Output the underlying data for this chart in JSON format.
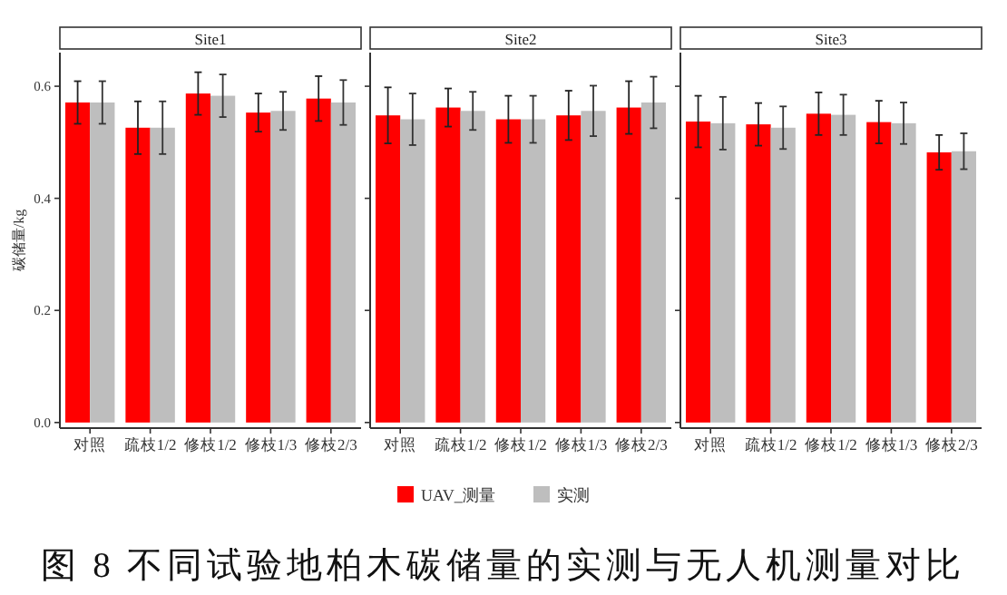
{
  "chart_data": [
    {
      "type": "bar",
      "title": "Site1",
      "ylabel": "碳储量/kg",
      "categories": [
        "对照",
        "疏枝1/2",
        "修枝1/2",
        "修枝1/3",
        "修枝2/3"
      ],
      "ylim": [
        -0.01,
        0.66
      ],
      "yticks": [
        {
          "value": 0,
          "label": "0.0"
        },
        0.2,
        0.4,
        0.6
      ],
      "legend": "bottom",
      "annotations": [
        "图 8 不同试验地柏木碳储量的实测与无人机测量对比"
      ],
      "series": [
        {
          "name": "UAV_测量",
          "color": "#ff0000",
          "values": [
            0.571,
            0.526,
            0.587,
            0.553,
            0.578
          ],
          "errors": [
            0.038,
            0.047,
            0.038,
            0.034,
            0.04
          ]
        },
        {
          "name": "实测",
          "color": "#bebebe",
          "values": [
            0.571,
            0.526,
            0.583,
            0.556,
            0.571
          ],
          "errors": [
            0.038,
            0.047,
            0.038,
            0.034,
            0.04
          ]
        }
      ]
    },
    {
      "type": "bar",
      "title": "Site2",
      "categories": [
        "对照",
        "疏枝1/2",
        "修枝1/2",
        "修枝1/3",
        "修枝2/3"
      ],
      "ylim": [
        -0.01,
        0.66
      ],
      "yticks": [
        0,
        0.2,
        0.4,
        0.6
      ],
      "tick_labels": "x",
      "series": [
        {
          "color": "#ff0000",
          "values": [
            0.548,
            0.562,
            0.541,
            0.548,
            0.562
          ],
          "errors": [
            0.05,
            0.034,
            0.042,
            0.044,
            0.047
          ]
        },
        {
          "color": "#bebebe",
          "values": [
            0.541,
            0.556,
            0.541,
            0.556,
            0.571
          ],
          "errors": [
            0.046,
            0.034,
            0.042,
            0.045,
            0.046
          ]
        }
      ]
    },
    {
      "type": "bar",
      "title": "Site3",
      "categories": [
        "对照",
        "疏枝1/2",
        "修枝1/2",
        "修枝1/3",
        "修枝2/3"
      ],
      "ylim": [
        -0.01,
        0.66
      ],
      "yticks": [
        0,
        0.2,
        0.4,
        0.6
      ],
      "tick_labels": "x",
      "series": [
        {
          "color": "#ff0000",
          "values": [
            0.537,
            0.532,
            0.551,
            0.536,
            0.482
          ],
          "errors": [
            0.046,
            0.038,
            0.038,
            0.038,
            0.031
          ]
        },
        {
          "color": "#bebebe",
          "values": [
            0.534,
            0.526,
            0.549,
            0.534,
            0.484
          ],
          "errors": [
            0.047,
            0.038,
            0.036,
            0.037,
            0.032
          ]
        }
      ]
    }
  ]
}
